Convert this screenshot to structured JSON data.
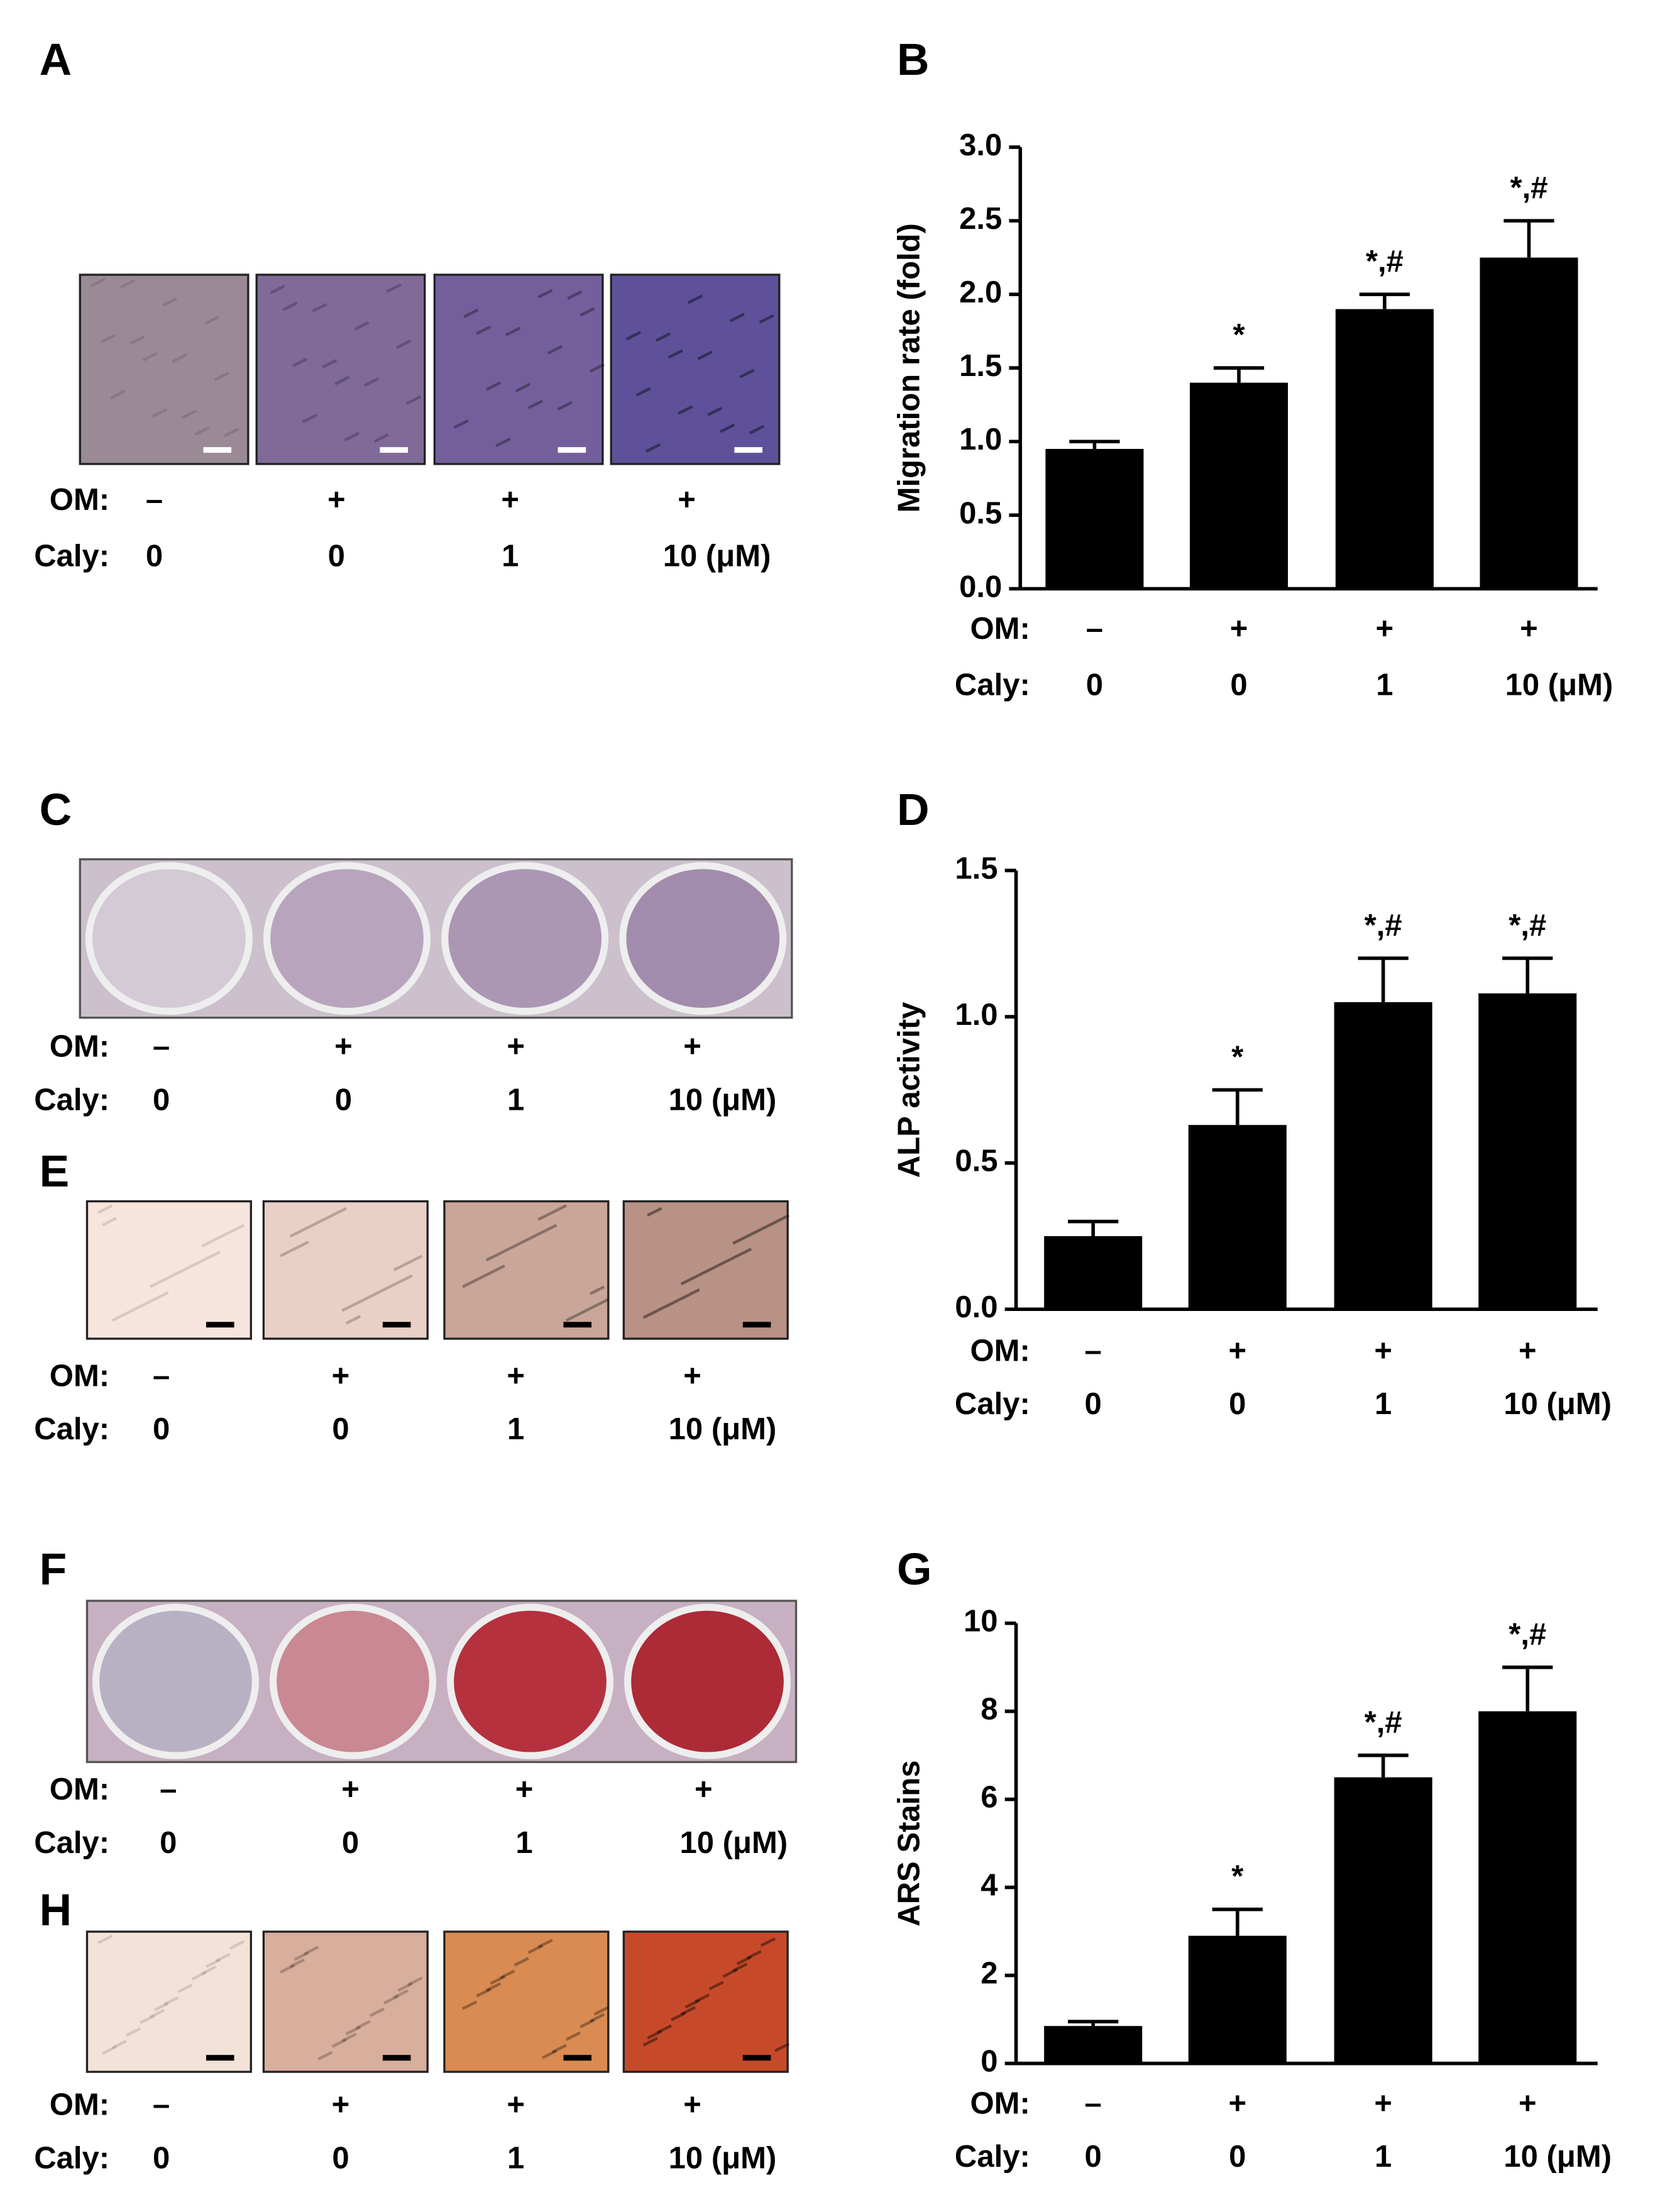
{
  "panels": [
    {
      "label": "A",
      "om_label": "OM:",
      "om": [
        "–",
        "+",
        "+",
        "+"
      ],
      "caly_label": "Caly:",
      "caly": [
        "0",
        "0",
        "1",
        "10 (μM)"
      ]
    },
    {
      "label": "C",
      "om_label": "OM:",
      "om": [
        "–",
        "+",
        "+",
        "+"
      ],
      "caly_label": "Caly:",
      "caly": [
        "0",
        "0",
        "1",
        "10 (μM)"
      ]
    },
    {
      "label": "E",
      "om_label": "OM:",
      "om": [
        "–",
        "+",
        "+",
        "+"
      ],
      "caly_label": "Caly:",
      "caly": [
        "0",
        "0",
        "1",
        "10 (μM)"
      ]
    },
    {
      "label": "F",
      "om_label": "OM:",
      "om": [
        "–",
        "+",
        "+",
        "+"
      ],
      "caly_label": "Caly:",
      "caly": [
        "0",
        "0",
        "1",
        "10 (μM)"
      ]
    },
    {
      "label": "H",
      "om_label": "OM:",
      "om": [
        "–",
        "+",
        "+",
        "+"
      ],
      "caly_label": "Caly:",
      "caly": [
        "0",
        "0",
        "1",
        "10 (μM)"
      ]
    }
  ],
  "chart_data": [
    {
      "type": "bar",
      "label": "B",
      "y_label": "Migration  rate (fold)",
      "om_label": "OM:",
      "om": [
        "–",
        "+",
        "+",
        "+"
      ],
      "category_label": "Caly:",
      "categories": [
        "0",
        "0",
        "1",
        "10 (μM)"
      ],
      "values": [
        0.95,
        1.4,
        1.9,
        2.25
      ],
      "errors": [
        0.05,
        0.1,
        0.1,
        0.25
      ],
      "annotations": [
        null,
        "*",
        "*,#",
        "*,#"
      ],
      "color": "#000000",
      "ylim": [
        0,
        3
      ],
      "yticks": [
        {
          "value": 0,
          "label": "0.0"
        },
        {
          "value": 0.5,
          "label": "0.5"
        },
        {
          "value": 1,
          "label": "1.0"
        },
        {
          "value": 1.5,
          "label": "1.5"
        },
        {
          "value": 2,
          "label": "2.0"
        },
        {
          "value": 2.5,
          "label": "2.5"
        },
        {
          "value": 3,
          "label": "3.0"
        }
      ]
    },
    {
      "type": "bar",
      "label": "D",
      "y_label": "ALP activity",
      "om_label": "OM:",
      "om": [
        "–",
        "+",
        "+",
        "+"
      ],
      "category_label": "Caly:",
      "categories": [
        "0",
        "0",
        "1",
        "10 (μM)"
      ],
      "values": [
        0.25,
        0.63,
        1.05,
        1.08
      ],
      "errors": [
        0.05,
        0.12,
        0.15,
        0.12
      ],
      "annotations": [
        null,
        "*",
        "*,#",
        "*,#"
      ],
      "color": "#000000",
      "ylim": [
        0,
        1.5
      ],
      "yticks": [
        {
          "value": 0,
          "label": "0.0"
        },
        {
          "value": 0.5,
          "label": "0.5"
        },
        {
          "value": 1,
          "label": "1.0"
        },
        {
          "value": 1.5,
          "label": "1.5"
        }
      ]
    },
    {
      "type": "bar",
      "label": "G",
      "y_label": "ARS Stains",
      "om_label": "OM:",
      "om": [
        "–",
        "+",
        "+",
        "+"
      ],
      "category_label": "Caly:",
      "categories": [
        "0",
        "0",
        "1",
        "10 (μM)"
      ],
      "values": [
        0.85,
        2.9,
        6.5,
        8.0
      ],
      "errors": [
        0.1,
        0.6,
        0.5,
        1.0
      ],
      "annotations": [
        null,
        "*",
        "*,#",
        "*,#"
      ],
      "color": "#000000",
      "ylim": [
        0,
        10
      ],
      "yticks": [
        0,
        2,
        4,
        6,
        8,
        10
      ]
    }
  ]
}
